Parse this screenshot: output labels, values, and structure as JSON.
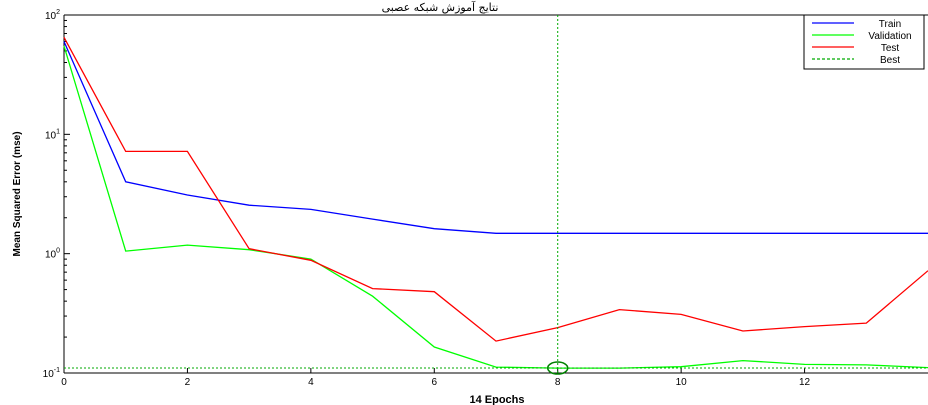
{
  "chart_data": {
    "type": "line",
    "title": "نتایج آموزش شبکه عصبی",
    "xlabel": "14 Epochs",
    "ylabel": "Mean Squared Error  (mse)",
    "yscale": "log",
    "xlim": [
      0,
      14
    ],
    "ylim": [
      0.1,
      100
    ],
    "x_ticks": [
      "0",
      "2",
      "4",
      "6",
      "8",
      "10",
      "12"
    ],
    "y_ticks": [
      {
        "base": "10",
        "exp": "-1",
        "value": 0.1
      },
      {
        "base": "10",
        "exp": "0",
        "value": 1
      },
      {
        "base": "10",
        "exp": "1",
        "value": 10
      },
      {
        "base": "10",
        "exp": "2",
        "value": 100
      }
    ],
    "grid": false,
    "legend_position": "top-right",
    "x": [
      0,
      1,
      2,
      3,
      4,
      5,
      6,
      7,
      8,
      9,
      10,
      11,
      12,
      13,
      14
    ],
    "series": [
      {
        "name": "Train",
        "color": "#0000ff",
        "values": [
          60,
          4.0,
          3.1,
          2.55,
          2.35,
          1.95,
          1.62,
          1.48,
          1.48,
          1.48,
          1.48,
          1.48,
          1.48,
          1.48,
          1.48
        ]
      },
      {
        "name": "Validation",
        "color": "#00ff00",
        "values": [
          55,
          1.05,
          1.18,
          1.08,
          0.9,
          0.44,
          0.165,
          0.112,
          0.11,
          0.11,
          0.113,
          0.127,
          0.118,
          0.117,
          0.111
        ]
      },
      {
        "name": "Test",
        "color": "#ff0000",
        "values": [
          65,
          7.2,
          7.2,
          1.1,
          0.88,
          0.51,
          0.48,
          0.185,
          0.24,
          0.34,
          0.31,
          0.225,
          0.245,
          0.262,
          0.72
        ]
      }
    ],
    "best": {
      "name": "Best",
      "color": "#00aa00",
      "epoch": 8,
      "value": 0.11
    }
  }
}
